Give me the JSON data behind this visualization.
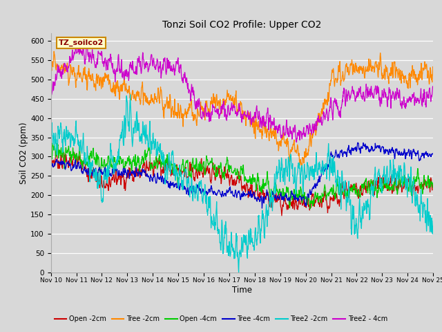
{
  "title": "Tonzi Soil CO2 Profile: Upper CO2",
  "ylabel": "Soil CO2 (ppm)",
  "xlabel": "Time",
  "watermark": "TZ_soilco2",
  "x_tick_labels": [
    "Nov 10",
    "Nov 11",
    "Nov 12",
    "Nov 13",
    "Nov 14",
    "Nov 15",
    "Nov 16",
    "Nov 17",
    "Nov 18",
    "Nov 19",
    "Nov 20",
    "Nov 21",
    "Nov 22",
    "Nov 23",
    "Nov 24",
    "Nov 25"
  ],
  "ylim": [
    0,
    620
  ],
  "yticks": [
    0,
    50,
    100,
    150,
    200,
    250,
    300,
    350,
    400,
    450,
    500,
    550,
    600
  ],
  "bg_color": "#d8d8d8",
  "plot_bg_color": "#d8d8d8",
  "series": {
    "Open_2cm": {
      "color": "#cc0000",
      "label": "Open -2cm"
    },
    "Tree_2cm": {
      "color": "#ff8800",
      "label": "Tree -2cm"
    },
    "Open_4cm": {
      "color": "#00cc00",
      "label": "Open -4cm"
    },
    "Tree_4cm": {
      "color": "#0000cc",
      "label": "Tree -4cm"
    },
    "Tree2_2cm": {
      "color": "#00cccc",
      "label": "Tree2 -2cm"
    },
    "Tree2_4cm": {
      "color": "#cc00cc",
      "label": "Tree2 - 4cm"
    }
  }
}
